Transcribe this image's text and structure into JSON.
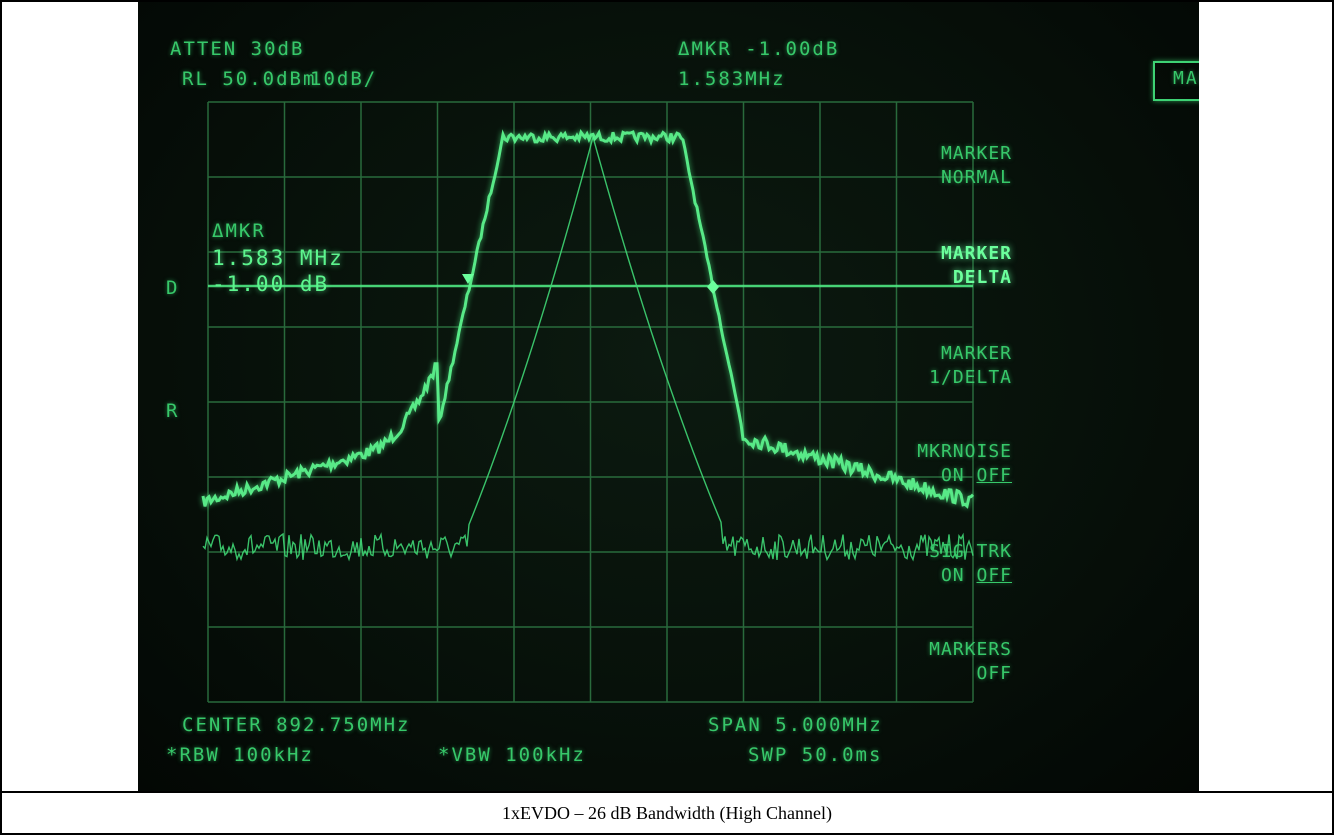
{
  "header": {
    "atten": "ATTEN 30dB",
    "ref_level": "RL 50.0dBm",
    "scale": "10dB/",
    "delta_mkr_amp": "ΔMKR -1.00dB",
    "delta_mkr_freq": "1.583MHz"
  },
  "marker_readout": {
    "label": "ΔMKR",
    "freq": "1.583 MHz",
    "amp": "-1.00 dB"
  },
  "side_labels": {
    "d": "D",
    "r": "R"
  },
  "softkeys": {
    "title": "MARKER",
    "items": [
      {
        "line1": "MARKER",
        "line2": "NORMAL",
        "active": false
      },
      {
        "line1": "MARKER",
        "line2": "DELTA",
        "active": true
      },
      {
        "line1": "MARKER",
        "line2": "1/DELTA",
        "active": false
      },
      {
        "line1": "MKRNOISE",
        "line2_on": "ON ",
        "line2_off": "OFF",
        "active": false
      },
      {
        "line1": "SIG TRK",
        "line2_on": "ON ",
        "line2_off": "OFF",
        "active": false
      },
      {
        "line1": "MARKERS",
        "line2": "OFF",
        "active": false
      }
    ]
  },
  "footer": {
    "center": "CENTER 892.750MHz",
    "span": "SPAN 5.000MHz",
    "rbw": "*RBW 100kHz",
    "vbw": "*VBW 100kHz",
    "sweep": "SWP 50.0ms"
  },
  "caption": "1xEVDO – 26 dB Bandwidth (High Channel)",
  "colors": {
    "trace": "#5df58e",
    "grid": "#2f7a45",
    "background": "#07110a"
  }
}
